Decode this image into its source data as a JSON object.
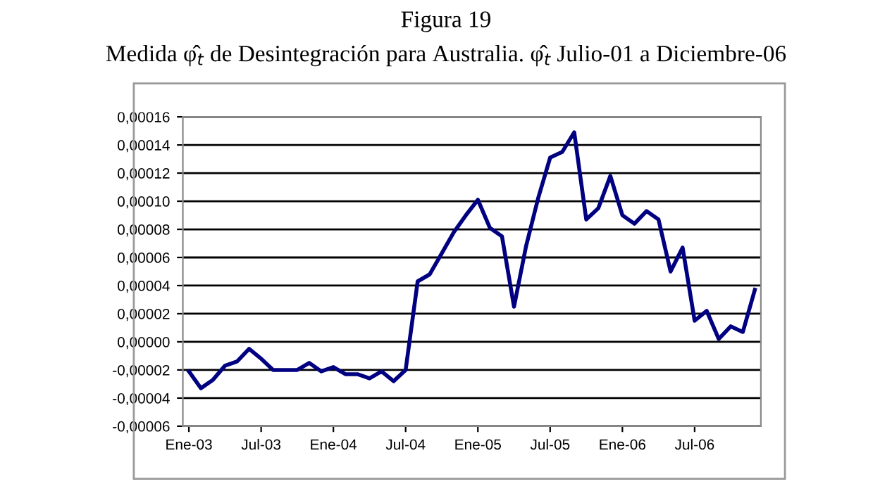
{
  "chart_data": {
    "type": "line",
    "title": "Figura 19",
    "subtitle": "Medida φ̂$_{t}$ de Desintegración para Australia. φ̂$_{t}$ Julio-01 a Diciembre-06",
    "categories": [
      "Ene-03",
      null,
      null,
      null,
      null,
      null,
      "Jul-03",
      null,
      null,
      null,
      null,
      null,
      "Ene-04",
      null,
      null,
      null,
      null,
      null,
      "Jul-04",
      null,
      null,
      null,
      null,
      null,
      "Ene-05",
      null,
      null,
      null,
      null,
      null,
      "Jul-05",
      null,
      null,
      null,
      null,
      null,
      "Ene-06",
      null,
      null,
      null,
      null,
      null,
      "Jul-06",
      null,
      null,
      null,
      null,
      null
    ],
    "series": [
      {
        "color": "#000080",
        "values": [
          -2.1e-05,
          -3.3e-05,
          -2.7e-05,
          -1.7e-05,
          -1.4e-05,
          -5e-06,
          -1.2e-05,
          -2e-05,
          -2e-05,
          -2e-05,
          -1.5e-05,
          -2.1e-05,
          -1.8e-05,
          -2.3e-05,
          -2.3e-05,
          -2.6e-05,
          -2.1e-05,
          -2.8e-05,
          -2e-05,
          4.3e-05,
          4.8e-05,
          6.3e-05,
          7.8e-05,
          9e-05,
          0.000101,
          8.1e-05,
          7.5e-05,
          2.5e-05,
          6.8e-05,
          0.000102,
          0.000131,
          0.000135,
          0.000149,
          8.7e-05,
          9.5e-05,
          0.000118,
          9e-05,
          8.4e-05,
          9.3e-05,
          8.7e-05,
          5e-05,
          6.7e-05,
          1.5e-05,
          2.2e-05,
          2e-06,
          1.1e-05,
          7e-06,
          3.7e-05
        ]
      }
    ],
    "ylim": [
      -6e-05,
      0.00016
    ],
    "yticks": [
      {
        "value": -6e-05,
        "label": "-0,00006"
      },
      {
        "value": -4e-05,
        "label": "-0,00004"
      },
      {
        "value": -2e-05,
        "label": "-0,00002"
      },
      {
        "value": 0,
        "label": "0,00000"
      },
      {
        "value": 2e-05,
        "label": "0,00002"
      },
      {
        "value": 4e-05,
        "label": "0,00004"
      },
      {
        "value": 6e-05,
        "label": "0,00006"
      },
      {
        "value": 8e-05,
        "label": "0,00008"
      },
      {
        "value": 0.0001,
        "label": "0,00010"
      },
      {
        "value": 0.00012,
        "label": "0,00012"
      },
      {
        "value": 0.00014,
        "label": "0,00014"
      },
      {
        "value": 0.00016,
        "label": "0,00016"
      }
    ],
    "grid": "y",
    "legend": false,
    "marker": "none",
    "line_style": "solid"
  }
}
